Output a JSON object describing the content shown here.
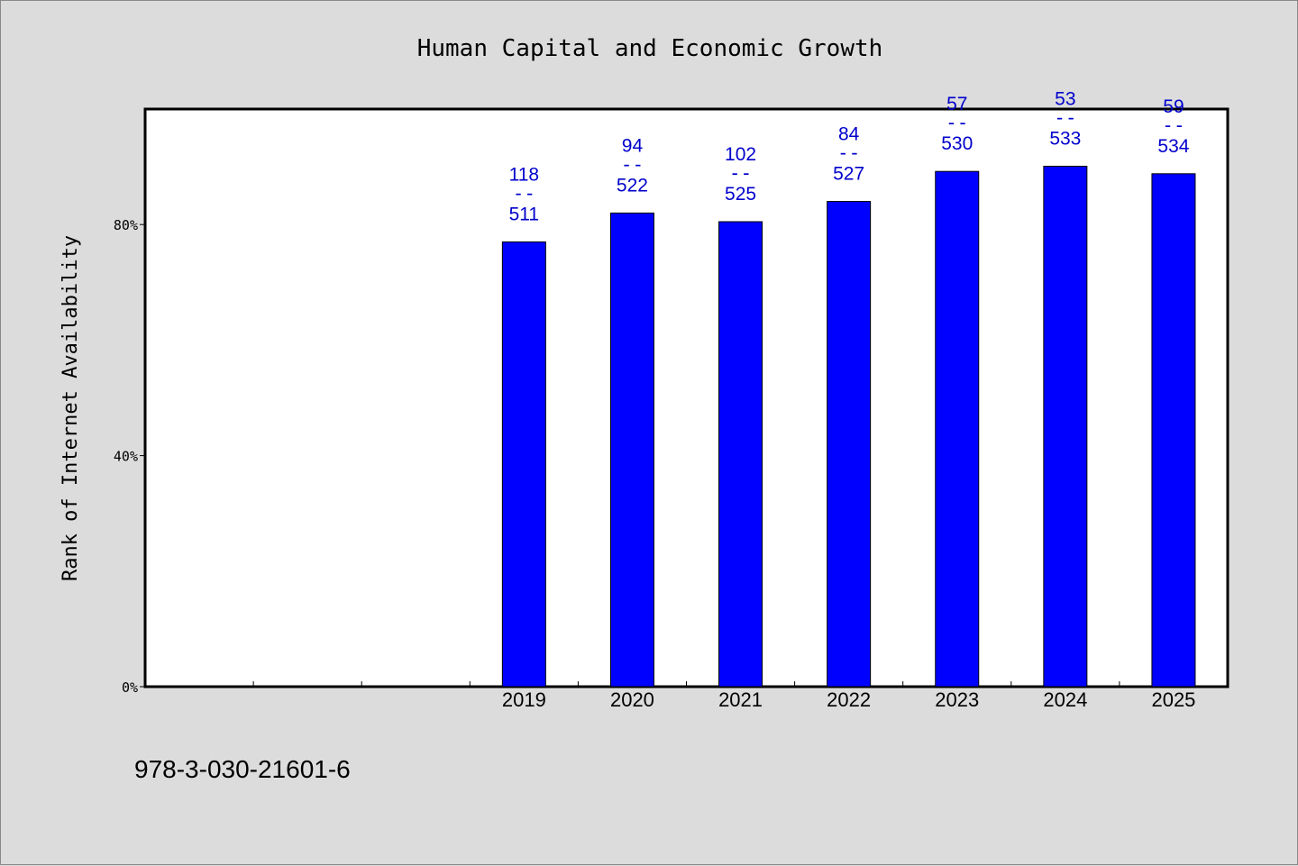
{
  "chart_data": {
    "type": "bar",
    "title": "Human Capital and Economic Growth",
    "ylabel": "Rank of Internet Availability",
    "xlabel": "",
    "yaxis": {
      "ticks": [
        "0%",
        "40%",
        "80%"
      ],
      "tick_values": [
        0,
        40,
        80
      ],
      "range": [
        0,
        100
      ]
    },
    "grid": false,
    "legend": "none",
    "categories": [
      "2019",
      "2020",
      "2021",
      "2022",
      "2023",
      "2024",
      "2025"
    ],
    "values": [
      77.0,
      82.0,
      80.5,
      84.0,
      89.2,
      90.1,
      88.8
    ],
    "ranks": [
      118,
      94,
      102,
      84,
      57,
      53,
      59
    ],
    "totals": [
      511,
      522,
      525,
      527,
      530,
      533,
      534
    ],
    "label_separator": "--",
    "empty_leading_slots": 3,
    "bar_color": "#0000ff",
    "label_color": "#0000cc"
  },
  "footnote": "978-3-030-21601-6",
  "colors": {
    "background": "#dcdcdc",
    "plot_background": "#ffffff",
    "axis": "#000000"
  }
}
